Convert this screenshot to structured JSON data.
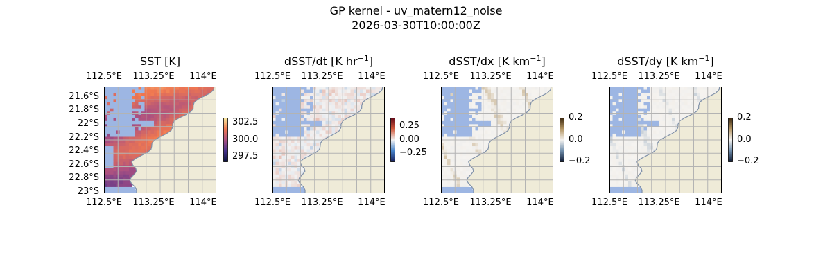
{
  "figure": {
    "title": "GP kernel - uv_matern12_noise",
    "subtitle": "2026-03-30T10:00:00Z"
  },
  "chart_data": [
    {
      "type": "heatmap",
      "title": "SST [K]",
      "title_sup": "",
      "title_tail": "",
      "xticks": [
        "112.5°E",
        "113.25°E",
        "114°E"
      ],
      "xtick_values": [
        112.5,
        113.25,
        114.0
      ],
      "yticks": [
        "21.6°S",
        "21.8°S",
        "22°S",
        "22.2°S",
        "22.4°S",
        "22.6°S",
        "22.8°S",
        "23°S"
      ],
      "ytick_values": [
        -21.6,
        -21.8,
        -22.0,
        -22.2,
        -22.4,
        -22.6,
        -22.8,
        -23.0
      ],
      "xlim": [
        112.5,
        114.2
      ],
      "ylim": [
        -23.02,
        -21.45
      ],
      "grid": true,
      "colorbar": {
        "ticks": [
          "302.5",
          "300.0",
          "297.5"
        ],
        "tick_values": [
          302.5,
          300.0,
          297.5
        ],
        "range": [
          296.8,
          303.2
        ],
        "colormap": "thermal"
      }
    },
    {
      "type": "heatmap",
      "title": "dSST/dt [K hr",
      "title_sup": "−1",
      "title_tail": "]",
      "xticks": [
        "112.5°E",
        "113.25°E",
        "114°E"
      ],
      "xtick_values": [
        112.5,
        113.25,
        114.0
      ],
      "xlim": [
        112.5,
        114.2
      ],
      "ylim": [
        -23.02,
        -21.45
      ],
      "grid": true,
      "colorbar": {
        "ticks": [
          "0.25",
          "0.00",
          "−0.25"
        ],
        "tick_values": [
          0.25,
          0.0,
          -0.25
        ],
        "range": [
          -0.4,
          0.4
        ],
        "colormap": "balance"
      }
    },
    {
      "type": "heatmap",
      "title": "dSST/dx [K km",
      "title_sup": "−1",
      "title_tail": "]",
      "xticks": [
        "112.5°E",
        "113.25°E",
        "114°E"
      ],
      "xtick_values": [
        112.5,
        113.25,
        114.0
      ],
      "xlim": [
        112.5,
        114.2
      ],
      "ylim": [
        -23.02,
        -21.45
      ],
      "grid": true,
      "colorbar": {
        "ticks": [
          "0.2",
          "0.0",
          "−0.2"
        ],
        "tick_values": [
          0.2,
          0.0,
          -0.2
        ],
        "range": [
          -0.2,
          0.2
        ],
        "colormap": "diff"
      }
    },
    {
      "type": "heatmap",
      "title": "dSST/dy [K km",
      "title_sup": "−1",
      "title_tail": "]",
      "xticks": [
        "112.5°E",
        "113.25°E",
        "114°E"
      ],
      "xtick_values": [
        112.5,
        113.25,
        114.0
      ],
      "xlim": [
        112.5,
        114.2
      ],
      "ylim": [
        -23.02,
        -21.45
      ],
      "grid": true,
      "colorbar": {
        "ticks": [
          "0.2",
          "0.0",
          "−0.2"
        ],
        "tick_values": [
          0.2,
          0.0,
          -0.2
        ],
        "range": [
          -0.2,
          0.2
        ],
        "colormap": "diff"
      }
    }
  ],
  "colors": {
    "land": "#efebd8",
    "missing": "#9db6e3",
    "gridline": "#b3b3b3",
    "coast": "#7e8fa8"
  }
}
